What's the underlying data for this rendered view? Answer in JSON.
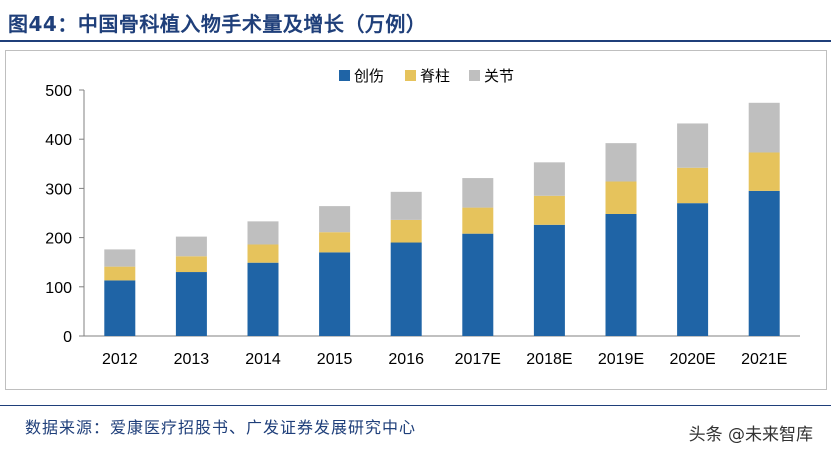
{
  "header": {
    "title": "图44：中国骨科植入物手术量及增长（万例）"
  },
  "footer": {
    "source": "数据来源：爱康医疗招股书、广发证券发展研究中心",
    "watermark": "头条 @未来智库"
  },
  "chart_data": {
    "type": "bar",
    "stacked": true,
    "title": "",
    "xlabel": "",
    "ylabel": "",
    "categories": [
      "2012",
      "2013",
      "2014",
      "2015",
      "2016",
      "2017E",
      "2018E",
      "2019E",
      "2020E",
      "2021E"
    ],
    "series": [
      {
        "name": "创伤",
        "color": "#1f64a6",
        "values": [
          113,
          130,
          149,
          170,
          190,
          208,
          226,
          248,
          270,
          295
        ]
      },
      {
        "name": "脊柱",
        "color": "#e6c35c",
        "values": [
          28,
          32,
          37,
          41,
          46,
          53,
          59,
          66,
          72,
          78
        ]
      },
      {
        "name": "关节",
        "color": "#bfbfbf",
        "values": [
          35,
          40,
          47,
          53,
          57,
          60,
          68,
          78,
          90,
          101
        ]
      }
    ],
    "ylim": [
      0,
      500
    ],
    "yticks": [
      0,
      100,
      200,
      300,
      400,
      500
    ],
    "grid": false,
    "legend_position": "top-center"
  }
}
